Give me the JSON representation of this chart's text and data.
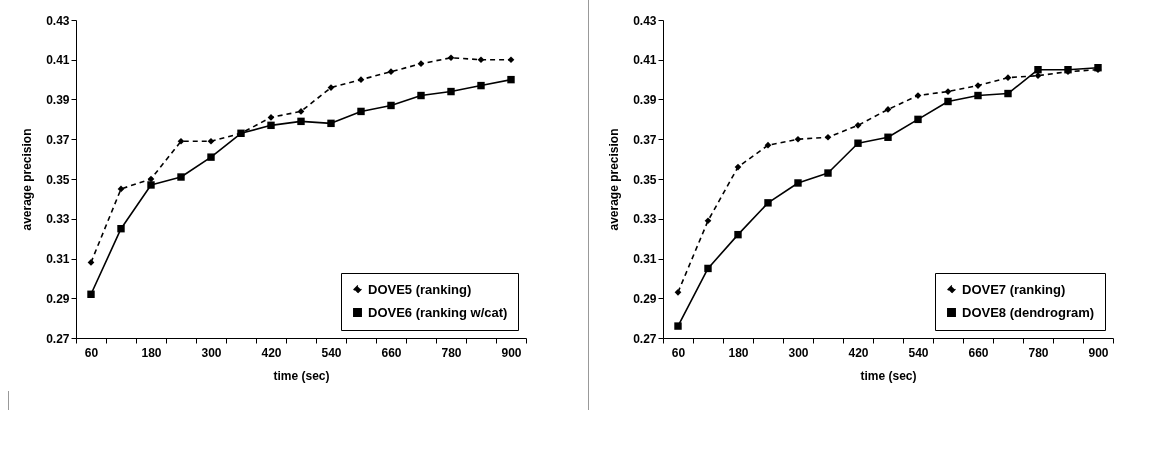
{
  "chart_data": [
    {
      "type": "line",
      "xlabel": "time (sec)",
      "ylabel": "average precision",
      "categories": [
        "60",
        null,
        "180",
        null,
        "300",
        null,
        "420",
        null,
        "540",
        null,
        "660",
        null,
        "780",
        null,
        "900"
      ],
      "ylim": [
        0.27,
        0.43
      ],
      "yticks": [
        0.27,
        0.29,
        0.31,
        0.33,
        0.35,
        0.37,
        0.39,
        0.41,
        0.43
      ],
      "grid": false,
      "legend": "bottom right",
      "series": [
        {
          "name": "DOVE5 (ranking)",
          "color": "#000000",
          "line_style": "dashed",
          "marker": "diamond",
          "values": [
            0.308,
            0.345,
            0.35,
            0.369,
            0.369,
            0.373,
            0.381,
            0.384,
            0.396,
            0.4,
            0.404,
            0.408,
            0.411,
            0.41,
            0.41
          ]
        },
        {
          "name": "DOVE6 (ranking w/cat)",
          "color": "#000000",
          "line_style": "solid",
          "marker": "square",
          "values": [
            0.292,
            0.325,
            0.347,
            0.351,
            0.361,
            0.373,
            0.377,
            0.379,
            0.378,
            0.384,
            0.387,
            0.392,
            0.394,
            0.397,
            0.4
          ]
        }
      ]
    },
    {
      "type": "line",
      "xlabel": "time (sec)",
      "ylabel": "average precision",
      "categories": [
        "60",
        null,
        "180",
        null,
        "300",
        null,
        "420",
        null,
        "540",
        null,
        "660",
        null,
        "780",
        null,
        "900"
      ],
      "ylim": [
        0.27,
        0.43
      ],
      "yticks": [
        0.27,
        0.29,
        0.31,
        0.33,
        0.35,
        0.37,
        0.39,
        0.41,
        0.43
      ],
      "grid": false,
      "legend": "bottom right",
      "series": [
        {
          "name": "DOVE7 (ranking)",
          "color": "#000000",
          "line_style": "dashed",
          "marker": "diamond",
          "values": [
            0.293,
            0.329,
            0.356,
            0.367,
            0.37,
            0.371,
            0.377,
            0.385,
            0.392,
            0.394,
            0.397,
            0.401,
            0.402,
            0.404,
            0.405
          ]
        },
        {
          "name": "DOVE8 (dendrogram)",
          "color": "#000000",
          "line_style": "solid",
          "marker": "square",
          "values": [
            0.276,
            0.305,
            0.322,
            0.338,
            0.348,
            0.353,
            0.368,
            0.371,
            0.38,
            0.389,
            0.392,
            0.393,
            0.405,
            0.405,
            0.406
          ]
        }
      ]
    }
  ]
}
